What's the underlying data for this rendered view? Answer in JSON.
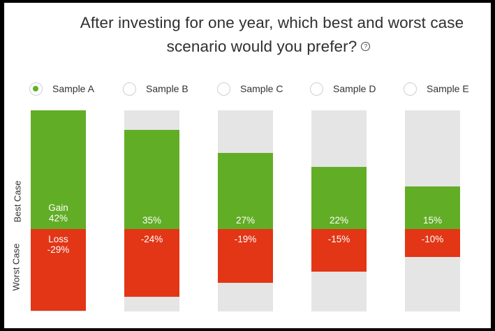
{
  "question": {
    "line1": "After investing for one year, which best and worst case",
    "line2": "scenario would you prefer?",
    "help_icon": "question-circle-icon"
  },
  "axis": {
    "best_label": "Best Case",
    "worst_label": "Worst Case"
  },
  "colors": {
    "gain": "#62ad26",
    "loss": "#e23616",
    "track": "#e5e5e5",
    "radio_selected": "#5fb224"
  },
  "selected_sample": "Sample A",
  "samples": [
    {
      "name": "Sample A",
      "gain": "42%",
      "loss": "-29%",
      "gain_prefix": "Gain",
      "loss_prefix": "Loss",
      "selected": true
    },
    {
      "name": "Sample B",
      "gain": "35%",
      "loss": "-24%",
      "selected": false
    },
    {
      "name": "Sample C",
      "gain": "27%",
      "loss": "-19%",
      "selected": false
    },
    {
      "name": "Sample D",
      "gain": "22%",
      "loss": "-15%",
      "selected": false
    },
    {
      "name": "Sample E",
      "gain": "15%",
      "loss": "-10%",
      "selected": false
    }
  ],
  "chart_data": {
    "type": "bar",
    "categories": [
      "Sample A",
      "Sample B",
      "Sample C",
      "Sample D",
      "Sample E"
    ],
    "series": [
      {
        "name": "Best Case",
        "values": [
          42,
          35,
          27,
          22,
          15
        ]
      },
      {
        "name": "Worst Case",
        "values": [
          -29,
          -24,
          -19,
          -15,
          -10
        ]
      }
    ],
    "ylim": [
      -29,
      42
    ]
  }
}
